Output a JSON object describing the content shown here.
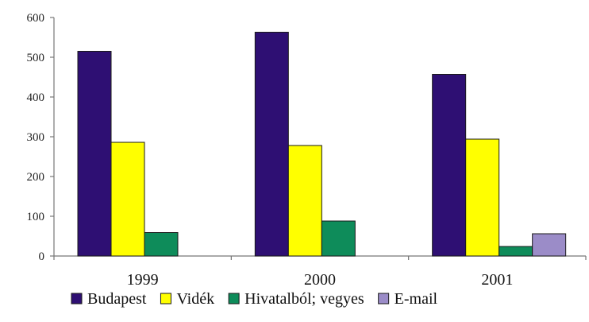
{
  "chart_data": {
    "type": "bar",
    "categories": [
      "1999",
      "2000",
      "2001"
    ],
    "series": [
      {
        "name": "Budapest",
        "color": "#2e0f73",
        "values": [
          515,
          563,
          457
        ]
      },
      {
        "name": "Vidék",
        "color": "#ffff00",
        "values": [
          286,
          278,
          294
        ]
      },
      {
        "name": "Hivatalból; vegyes",
        "color": "#0e8c5a",
        "values": [
          59,
          88,
          24
        ]
      },
      {
        "name": "E-mail",
        "color": "#9b8cc8",
        "values": [
          0,
          0,
          56
        ]
      }
    ],
    "ylim": [
      0,
      600
    ],
    "yticks": [
      "0",
      "100",
      "200",
      "300",
      "400",
      "500",
      "600"
    ],
    "legend_position": "bottom",
    "grid": false
  }
}
